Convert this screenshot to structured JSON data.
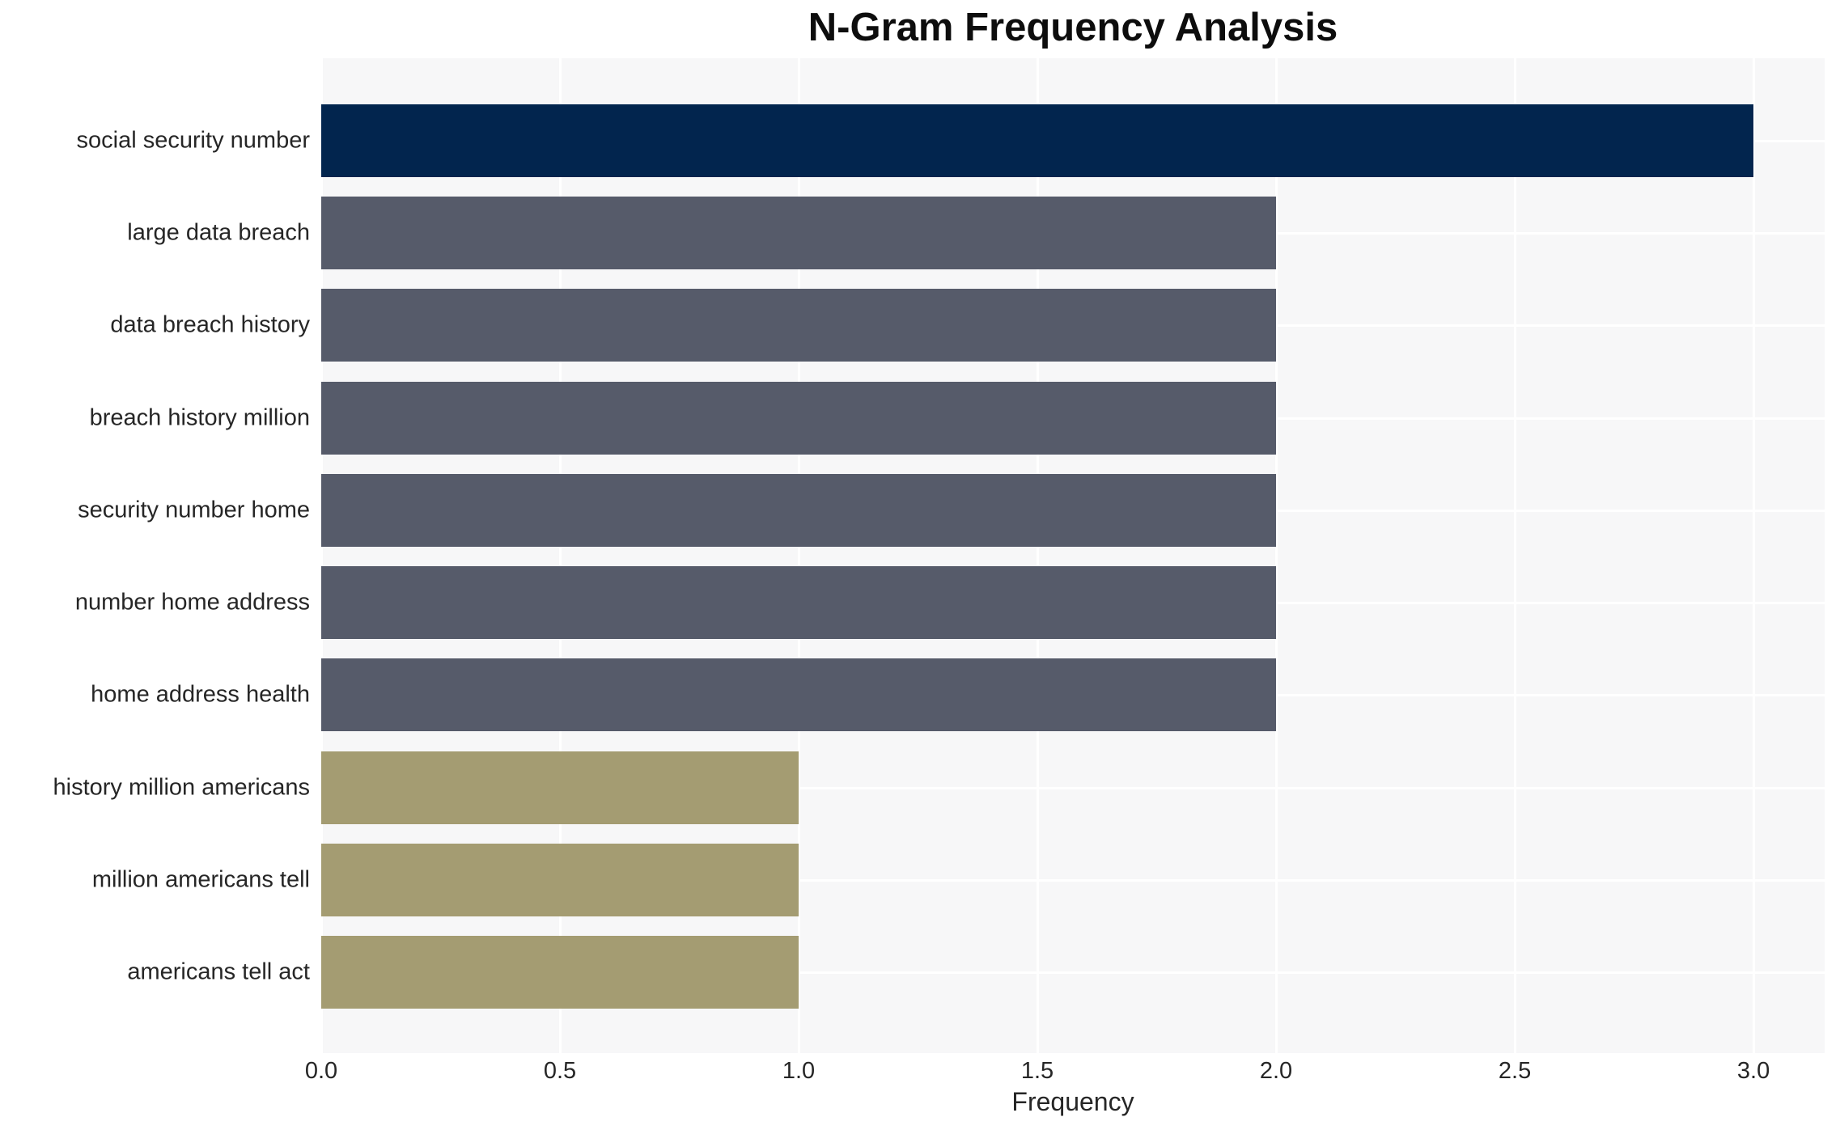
{
  "title": "N-Gram Frequency Analysis",
  "xlabel": "Frequency",
  "colors": {
    "bar_high": "#02254E",
    "bar_mid": "#565B6A",
    "bar_low": "#A49C72",
    "panel_background": "#F7F7F8",
    "gridline": "#FFFFFF",
    "text": "#262626",
    "title_text": "#0D0D0D",
    "page_background": "#FFFFFF"
  },
  "chart_data": {
    "type": "bar",
    "orientation": "horizontal",
    "title": "N-Gram Frequency Analysis",
    "xlabel": "Frequency",
    "ylabel": "",
    "categories": [
      "social security number",
      "large data breach",
      "data breach history",
      "breach history million",
      "security number home",
      "number home address",
      "home address health",
      "history million americans",
      "million americans tell",
      "americans tell act"
    ],
    "values": [
      3,
      2,
      2,
      2,
      2,
      2,
      2,
      1,
      1,
      1
    ],
    "bar_colors": [
      "#02254E",
      "#565B6A",
      "#565B6A",
      "#565B6A",
      "#565B6A",
      "#565B6A",
      "#565B6A",
      "#A49C72",
      "#A49C72",
      "#A49C72"
    ],
    "xticks": [
      0.0,
      0.5,
      1.0,
      1.5,
      2.0,
      2.5,
      3.0
    ],
    "xtick_labels": [
      "0.0",
      "0.5",
      "1.0",
      "1.5",
      "2.0",
      "2.5",
      "3.0"
    ],
    "xlim": [
      0,
      3.149
    ],
    "grid": "white vertical lines at x ticks and horizontal lines at category centers, drawn under bars",
    "legend_position": "none"
  }
}
